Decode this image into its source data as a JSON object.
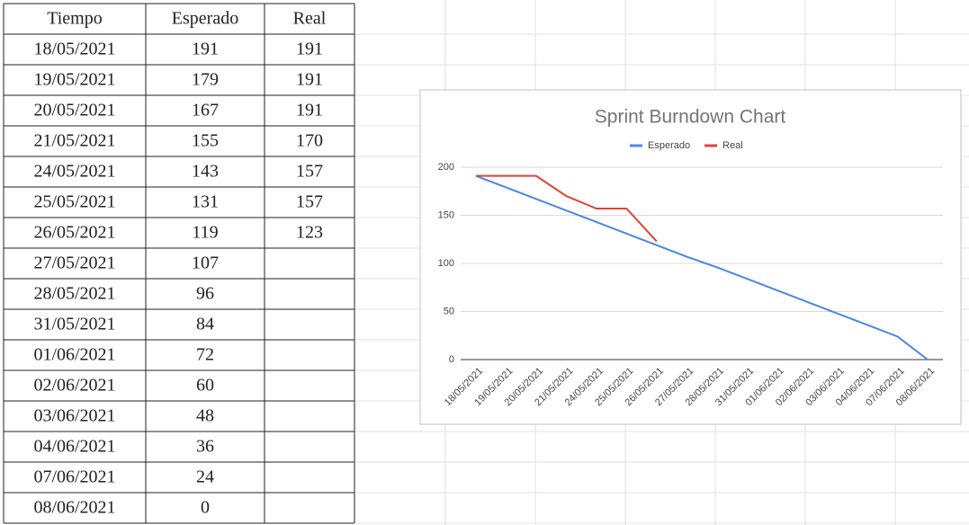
{
  "table": {
    "headers": [
      "Tiempo",
      "Esperado",
      "Real"
    ]
  },
  "chart_data": {
    "type": "line",
    "title": "Sprint Burndown Chart",
    "categories": [
      "18/05/2021",
      "19/05/2021",
      "20/05/2021",
      "21/05/2021",
      "24/05/2021",
      "25/05/2021",
      "26/05/2021",
      "27/05/2021",
      "28/05/2021",
      "31/05/2021",
      "01/06/2021",
      "02/06/2021",
      "03/06/2021",
      "04/06/2021",
      "07/06/2021",
      "08/06/2021"
    ],
    "series": [
      {
        "name": "Esperado",
        "color": "#4a86e8",
        "values": [
          191,
          179,
          167,
          155,
          143,
          131,
          119,
          107,
          96,
          84,
          72,
          60,
          48,
          36,
          24,
          0
        ]
      },
      {
        "name": "Real",
        "color": "#db4437",
        "values": [
          191,
          191,
          191,
          170,
          157,
          157,
          123,
          null,
          null,
          null,
          null,
          null,
          null,
          null,
          null,
          null
        ]
      }
    ],
    "ylim": [
      0,
      200
    ],
    "yticks": [
      0,
      50,
      100,
      150,
      200
    ],
    "grid": true,
    "legend": "top"
  }
}
